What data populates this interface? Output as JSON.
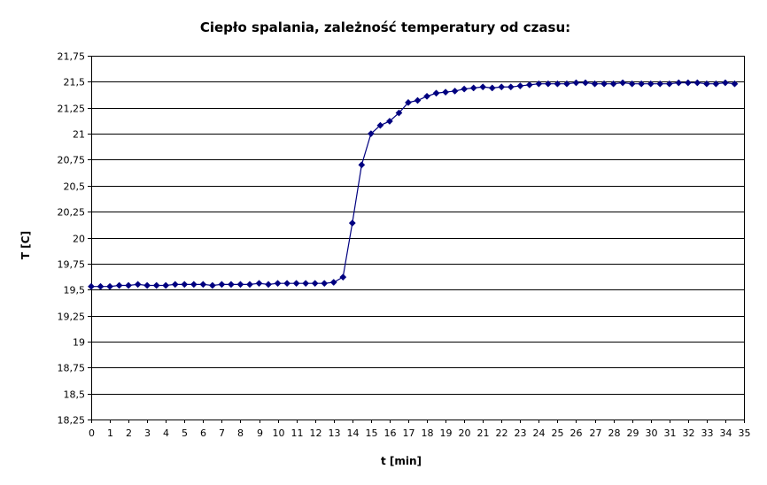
{
  "chart_data": {
    "type": "line",
    "title": "Ciepło spalania, zależność temperatury od czasu:",
    "xlabel": "t [min]",
    "ylabel": "T [C]",
    "xlim": [
      0,
      35
    ],
    "ylim": [
      18.25,
      21.75
    ],
    "x_tick_labels": [
      "0",
      "1",
      "2",
      "3",
      "4",
      "5",
      "6",
      "7",
      "8",
      "9",
      "10",
      "11",
      "12",
      "13",
      "14",
      "15",
      "16",
      "17",
      "18",
      "19",
      "20",
      "21",
      "22",
      "23",
      "24",
      "25",
      "26",
      "27",
      "28",
      "29",
      "30",
      "31",
      "32",
      "33",
      "34",
      "35"
    ],
    "y_tick_labels": [
      "21,75",
      "21,5",
      "21,25",
      "21",
      "20,75",
      "20,5",
      "20,25",
      "20",
      "19,75",
      "19,5",
      "19,25",
      "19",
      "18,75",
      "18,5",
      "18,25"
    ],
    "y_ticks": [
      21.75,
      21.5,
      21.25,
      21,
      20.75,
      20.5,
      20.25,
      20,
      19.75,
      19.5,
      19.25,
      19,
      18.75,
      18.5,
      18.25
    ],
    "grid": "horizontal",
    "legend": "none",
    "line_color": "#000080",
    "series": [
      {
        "x": [
          0,
          0.5,
          1,
          1.5,
          2,
          2.5,
          3,
          3.5,
          4,
          4.5,
          5,
          5.5,
          6,
          6.5,
          7,
          7.5,
          8,
          8.5,
          9,
          9.5,
          10,
          10.5,
          11,
          11.5,
          12,
          12.5,
          13,
          13.5,
          14,
          14.5,
          15,
          15.5,
          16,
          16.5,
          17,
          17.5,
          18,
          18.5,
          19,
          19.5,
          20,
          20.5,
          21,
          21.5,
          22,
          22.5,
          23,
          23.5,
          24,
          24.5,
          25,
          25.5,
          26,
          26.5,
          27,
          27.5,
          28,
          28.5,
          29,
          29.5,
          30,
          30.5,
          31,
          31.5,
          32,
          32.5,
          33,
          33.5,
          34,
          34.5
        ],
        "y": [
          19.53,
          19.53,
          19.53,
          19.54,
          19.54,
          19.55,
          19.54,
          19.54,
          19.54,
          19.55,
          19.55,
          19.55,
          19.55,
          19.54,
          19.55,
          19.55,
          19.55,
          19.55,
          19.56,
          19.55,
          19.56,
          19.56,
          19.56,
          19.56,
          19.56,
          19.56,
          19.57,
          19.62,
          20.14,
          20.7,
          21.0,
          21.08,
          21.12,
          21.2,
          21.3,
          21.32,
          21.36,
          21.39,
          21.4,
          21.41,
          21.43,
          21.44,
          21.45,
          21.44,
          21.45,
          21.45,
          21.46,
          21.47,
          21.48,
          21.48,
          21.48,
          21.48,
          21.49,
          21.49,
          21.48,
          21.48,
          21.48,
          21.49,
          21.48,
          21.48,
          21.48,
          21.48,
          21.48,
          21.49,
          21.49,
          21.49,
          21.48,
          21.48,
          21.49,
          21.48
        ]
      }
    ]
  }
}
